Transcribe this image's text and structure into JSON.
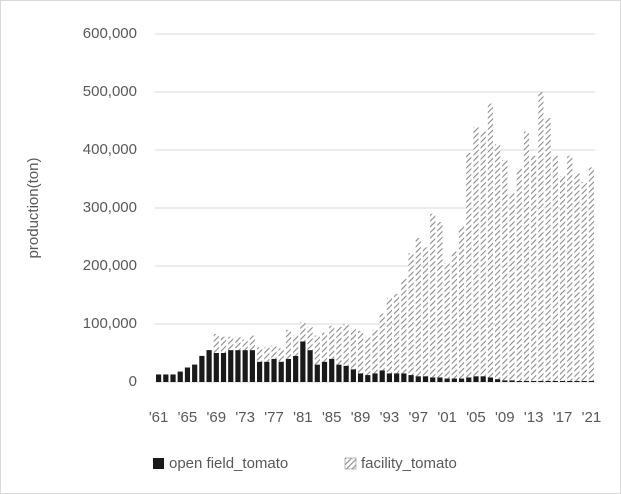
{
  "chart_data": {
    "type": "stacked_bar",
    "y_label": "production(ton)",
    "categories": [
      "'61",
      null,
      null,
      null,
      "'65",
      null,
      null,
      null,
      "'69",
      null,
      null,
      null,
      "'73",
      null,
      null,
      null,
      "'77",
      null,
      null,
      null,
      "'81",
      null,
      null,
      null,
      "'85",
      null,
      null,
      null,
      "'89",
      null,
      null,
      null,
      "'93",
      null,
      null,
      null,
      "'97",
      null,
      null,
      null,
      "'01",
      null,
      null,
      null,
      "'05",
      null,
      null,
      null,
      "'09",
      null,
      null,
      null,
      "'13",
      null,
      null,
      null,
      "'17",
      null,
      null,
      null,
      "'21"
    ],
    "series": [
      {
        "name": "open field_tomato",
        "color": "#1a1a1a",
        "values": [
          13000,
          13000,
          13000,
          18000,
          25000,
          30000,
          45000,
          55000,
          50000,
          50000,
          55000,
          55000,
          55000,
          55000,
          35000,
          35000,
          40000,
          35000,
          40000,
          45000,
          70000,
          55000,
          30000,
          35000,
          40000,
          30000,
          28000,
          22000,
          15000,
          12000,
          15000,
          20000,
          15000,
          15000,
          15000,
          12000,
          10000,
          10000,
          8000,
          8000,
          6000,
          6000,
          6000,
          8000,
          10000,
          10000,
          8000,
          5000,
          3000,
          3000,
          2000,
          2000,
          2000,
          2000,
          2000,
          2000,
          2000,
          2000,
          2000,
          2000,
          2000
        ]
      },
      {
        "name": "facility_tomato",
        "color": "#8c8c8c",
        "hatch": true,
        "values": [
          0,
          0,
          0,
          0,
          0,
          0,
          0,
          0,
          33000,
          28000,
          23000,
          23000,
          18000,
          25000,
          25000,
          25000,
          23000,
          23000,
          50000,
          35000,
          33000,
          40000,
          50000,
          50000,
          57000,
          65000,
          72000,
          70000,
          73000,
          66000,
          75000,
          98000,
          130000,
          137000,
          163000,
          210000,
          238000,
          222000,
          282000,
          268000,
          199000,
          219000,
          262000,
          387000,
          430000,
          422000,
          472000,
          405000,
          380000,
          322000,
          366000,
          430000,
          388000,
          498000,
          453000,
          388000,
          353000,
          388000,
          358000,
          343000,
          368000
        ]
      }
    ],
    "ylim": [
      0,
      600000
    ],
    "yticks": [
      0,
      {
        "value": 100000,
        "label": "100,000"
      },
      {
        "value": 200000,
        "label": "200,000"
      },
      {
        "value": 300000,
        "label": "300,000"
      },
      {
        "value": 400000,
        "label": "400,000"
      },
      {
        "value": 500000,
        "label": "500,000"
      },
      {
        "value": 600000,
        "label": "600,000"
      }
    ],
    "grid": true,
    "legend": "bottom"
  }
}
